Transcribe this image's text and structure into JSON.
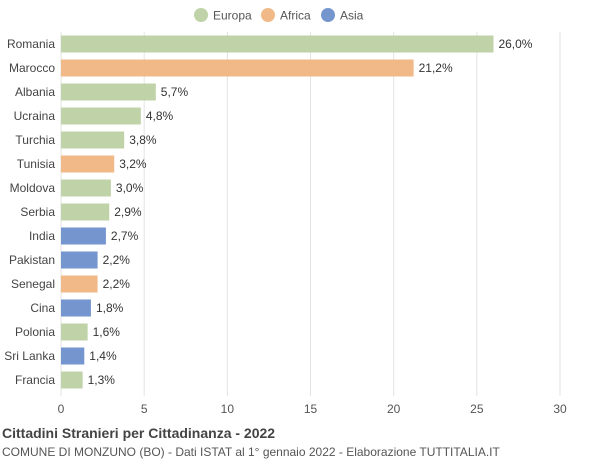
{
  "colors": {
    "Europa": "#c0d3a8",
    "Africa": "#f0b987",
    "Asia": "#7595cf"
  },
  "legend": [
    {
      "name": "Europa",
      "color": "#c0d3a8"
    },
    {
      "name": "Africa",
      "color": "#f0b987"
    },
    {
      "name": "Asia",
      "color": "#7595cf"
    }
  ],
  "footer": {
    "title": "Cittadini Stranieri per Cittadinanza - 2022",
    "subtitle": "COMUNE DI MONZUNO (BO) - Dati ISTAT al 1° gennaio 2022 - Elaborazione TUTTITALIA.IT"
  },
  "chart_data": {
    "type": "bar",
    "orientation": "horizontal",
    "title": "Cittadini Stranieri per Cittadinanza - 2022",
    "categories": [
      "Romania",
      "Marocco",
      "Albania",
      "Ucraina",
      "Turchia",
      "Tunisia",
      "Moldova",
      "Serbia",
      "India",
      "Pakistan",
      "Senegal",
      "Cina",
      "Polonia",
      "Sri Lanka",
      "Francia"
    ],
    "values": [
      26.0,
      21.2,
      5.7,
      4.8,
      3.8,
      3.2,
      3.0,
      2.9,
      2.7,
      2.2,
      2.2,
      1.8,
      1.6,
      1.4,
      1.3
    ],
    "value_labels": [
      "26,0%",
      "21,2%",
      "5,7%",
      "4,8%",
      "3,8%",
      "3,2%",
      "3,0%",
      "2,9%",
      "2,7%",
      "2,2%",
      "2,2%",
      "1,8%",
      "1,6%",
      "1,4%",
      "1,3%"
    ],
    "continents": [
      "Europa",
      "Africa",
      "Europa",
      "Europa",
      "Europa",
      "Africa",
      "Europa",
      "Europa",
      "Asia",
      "Asia",
      "Africa",
      "Asia",
      "Europa",
      "Asia",
      "Europa"
    ],
    "xlim": [
      0,
      30
    ],
    "xticks": [
      0,
      5,
      10,
      15,
      20,
      25,
      30
    ],
    "grid": true,
    "legend_position": "top-center"
  }
}
